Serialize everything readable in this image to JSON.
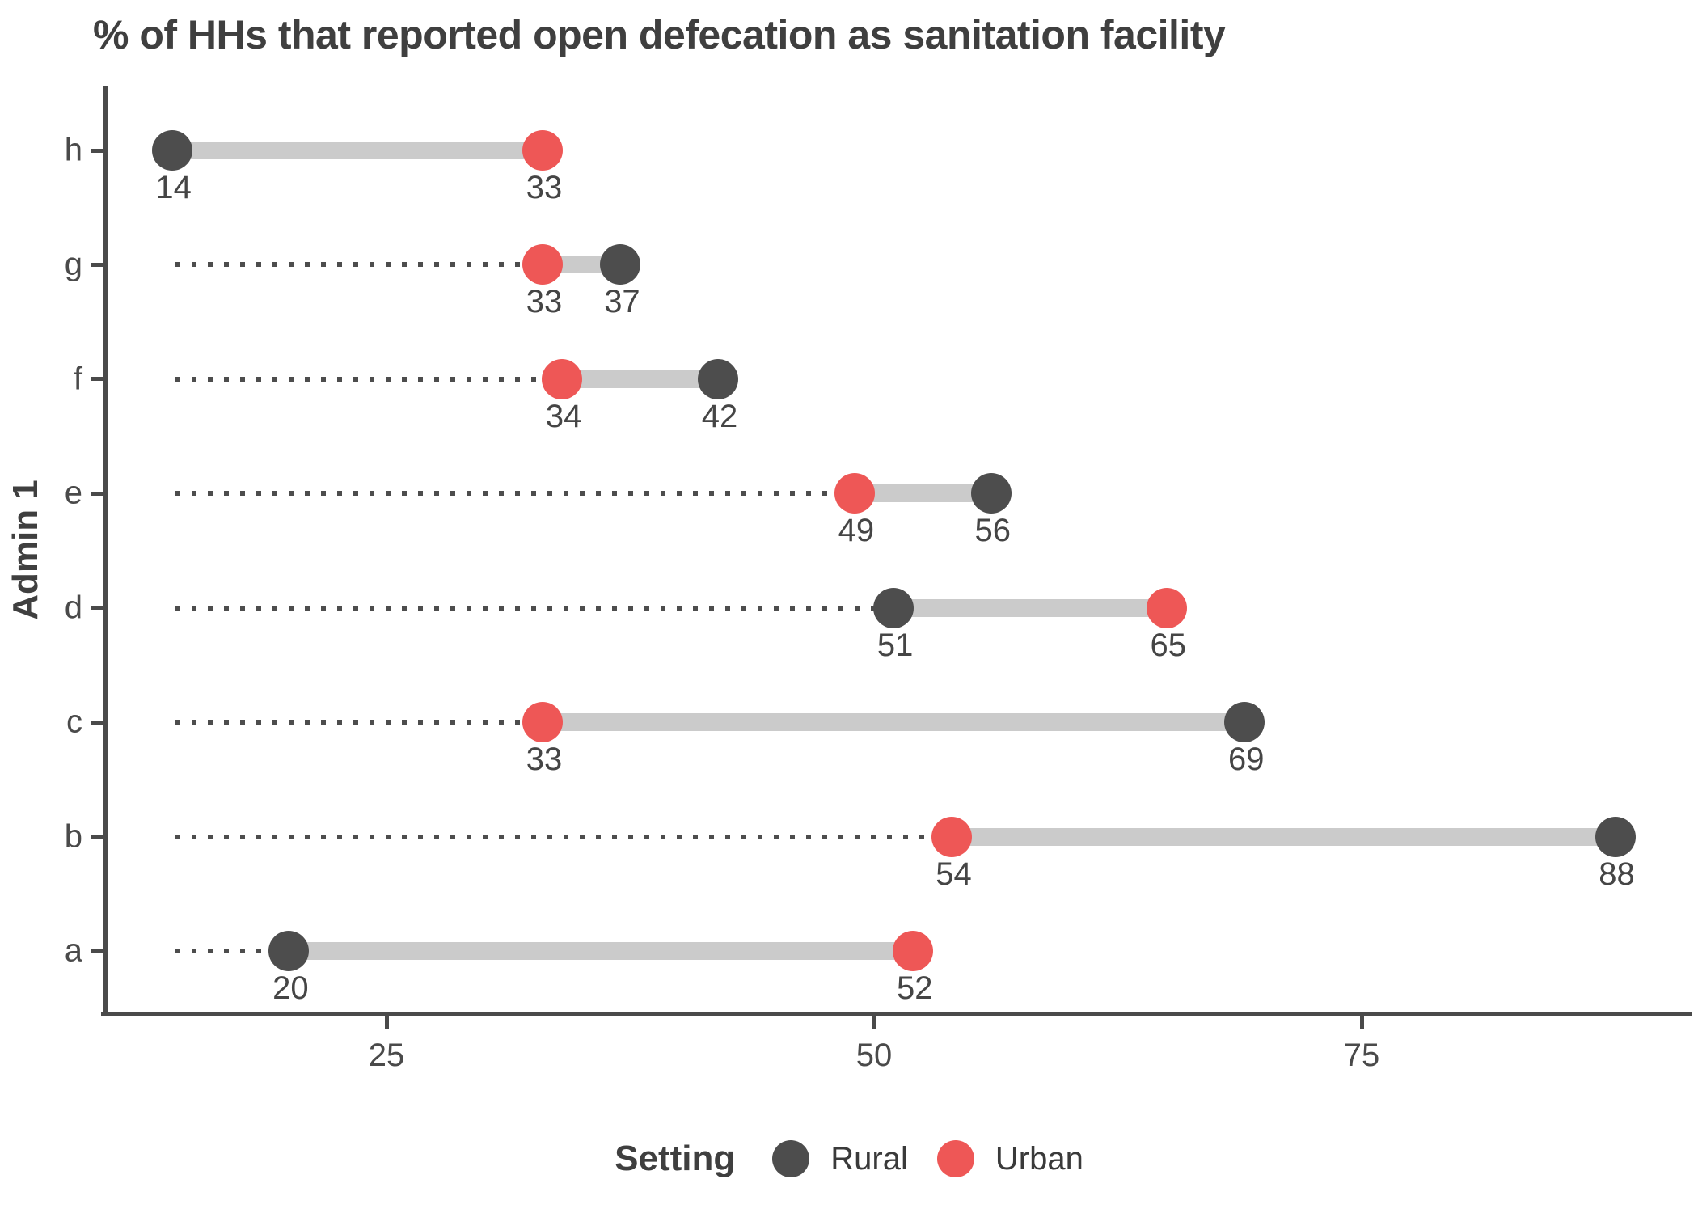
{
  "title": "% of HHs that reported open defecation as sanitation facility",
  "chart_data": {
    "type": "dumbbell",
    "title": "% of HHs that reported open defecation as sanitation facility",
    "ylabel": "Admin 1",
    "xlabel": "",
    "x_ticks": [
      25,
      50,
      75
    ],
    "xlim": [
      10.5,
      92
    ],
    "categories": [
      "h",
      "g",
      "f",
      "e",
      "d",
      "c",
      "b",
      "a"
    ],
    "series": [
      {
        "name": "Rural",
        "color": "#4d4d4d",
        "values": [
          14,
          37,
          42,
          56,
          51,
          69,
          88,
          20
        ]
      },
      {
        "name": "Urban",
        "color": "#ee5756",
        "values": [
          33,
          33,
          34,
          49,
          65,
          33,
          54,
          52
        ]
      }
    ],
    "value_labels": true,
    "grid": false,
    "connector_color": "#cbcbcb",
    "leader_style": "dotted leader from global minimum value to row minimum value",
    "legend": {
      "title": "Setting",
      "position": "bottom",
      "entries": [
        "Rural",
        "Urban"
      ]
    }
  },
  "colors": {
    "rural": "#4d4d4d",
    "urban": "#ee5756",
    "connector": "#cbcbcb",
    "axis": "#4a4a4a",
    "title_text": "#3f3f3f",
    "label_text": "#454545"
  }
}
